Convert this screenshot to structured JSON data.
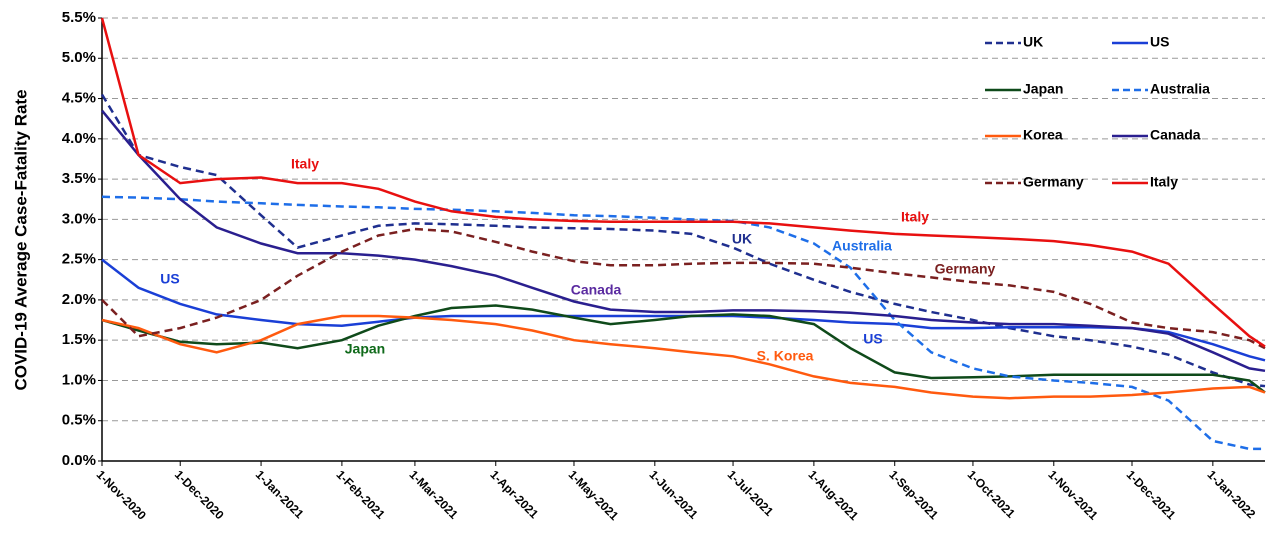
{
  "chart_data": {
    "type": "line",
    "y_label": "COVID-19  Average Case-Fatality Rate",
    "x": [
      "2020-11-01",
      "2020-11-15",
      "2020-12-01",
      "2020-12-15",
      "2021-01-01",
      "2021-01-15",
      "2021-02-01",
      "2021-02-15",
      "2021-03-01",
      "2021-03-15",
      "2021-04-01",
      "2021-04-15",
      "2021-05-01",
      "2021-05-15",
      "2021-06-01",
      "2021-06-15",
      "2021-07-01",
      "2021-07-15",
      "2021-08-01",
      "2021-08-15",
      "2021-09-01",
      "2021-09-15",
      "2021-10-01",
      "2021-10-15",
      "2021-11-01",
      "2021-11-15",
      "2021-12-01",
      "2021-12-15",
      "2022-01-01",
      "2022-01-15",
      "2022-01-21"
    ],
    "xlim": [
      "2020-11-01",
      "2022-01-21"
    ],
    "xticks": [
      {
        "value": "2020-11-01",
        "label": "1-Nov-2020"
      },
      {
        "value": "2020-12-01",
        "label": "1-Dec-2020"
      },
      {
        "value": "2021-01-01",
        "label": "1-Jan-2021"
      },
      {
        "value": "2021-02-01",
        "label": "1-Feb-2021"
      },
      {
        "value": "2021-03-01",
        "label": "1-Mar-2021"
      },
      {
        "value": "2021-04-01",
        "label": "1-Apr-2021"
      },
      {
        "value": "2021-05-01",
        "label": "1-May-2021"
      },
      {
        "value": "2021-06-01",
        "label": "1-Jun-2021"
      },
      {
        "value": "2021-07-01",
        "label": "1-Jul-2021"
      },
      {
        "value": "2021-08-01",
        "label": "1-Aug-2021"
      },
      {
        "value": "2021-09-01",
        "label": "1-Sep-2021"
      },
      {
        "value": "2021-10-01",
        "label": "1-Oct-2021"
      },
      {
        "value": "2021-11-01",
        "label": "1-Nov-2021"
      },
      {
        "value": "2021-12-01",
        "label": "1-Dec-2021"
      },
      {
        "value": "2022-01-01",
        "label": "1-Jan-2022"
      }
    ],
    "ylim": [
      0,
      5.5
    ],
    "yticks": [
      {
        "value": 0,
        "label": "0.0%"
      },
      {
        "value": 0.5,
        "label": "0.5%"
      },
      {
        "value": 1,
        "label": "1.0%"
      },
      {
        "value": 1.5,
        "label": "1.5%"
      },
      {
        "value": 2,
        "label": "2.0%"
      },
      {
        "value": 2.5,
        "label": "2.5%"
      },
      {
        "value": 3,
        "label": "3.0%"
      },
      {
        "value": 3.5,
        "label": "3.5%"
      },
      {
        "value": 4,
        "label": "4.0%"
      },
      {
        "value": 4.5,
        "label": "4.5%"
      },
      {
        "value": 5,
        "label": "5.0%"
      },
      {
        "value": 5.5,
        "label": "5.5%"
      }
    ],
    "grid": true,
    "legend": "top-right",
    "series": [
      {
        "name": "UK",
        "color": "#1f2f8f",
        "dashed": true,
        "values": [
          4.55,
          3.8,
          3.65,
          3.55,
          3.05,
          2.65,
          2.8,
          2.92,
          2.95,
          2.94,
          2.92,
          2.9,
          2.89,
          2.88,
          2.86,
          2.82,
          2.65,
          2.45,
          2.25,
          2.1,
          1.95,
          1.85,
          1.75,
          1.65,
          1.55,
          1.5,
          1.42,
          1.32,
          1.1,
          0.95,
          0.93
        ]
      },
      {
        "name": "US",
        "color": "#1a3fd6",
        "dashed": false,
        "values": [
          2.5,
          2.15,
          1.95,
          1.82,
          1.75,
          1.7,
          1.68,
          1.73,
          1.78,
          1.8,
          1.8,
          1.8,
          1.8,
          1.8,
          1.8,
          1.8,
          1.8,
          1.78,
          1.75,
          1.72,
          1.7,
          1.65,
          1.65,
          1.66,
          1.66,
          1.66,
          1.65,
          1.6,
          1.45,
          1.3,
          1.25
        ]
      },
      {
        "name": "Japan",
        "color": "#0f4a1a",
        "dashed": false,
        "values": [
          1.75,
          1.62,
          1.48,
          1.45,
          1.47,
          1.4,
          1.5,
          1.68,
          1.8,
          1.9,
          1.93,
          1.88,
          1.78,
          1.7,
          1.75,
          1.8,
          1.82,
          1.8,
          1.7,
          1.4,
          1.1,
          1.03,
          1.04,
          1.05,
          1.07,
          1.07,
          1.07,
          1.07,
          1.07,
          1.0,
          0.85
        ]
      },
      {
        "name": "Australia",
        "color": "#1e6ee8",
        "dashed": true,
        "values": [
          3.28,
          3.27,
          3.25,
          3.22,
          3.2,
          3.18,
          3.16,
          3.15,
          3.13,
          3.12,
          3.1,
          3.08,
          3.05,
          3.04,
          3.02,
          3.0,
          2.98,
          2.9,
          2.7,
          2.4,
          1.75,
          1.35,
          1.15,
          1.05,
          1.0,
          0.97,
          0.92,
          0.75,
          0.25,
          0.15,
          0.15
        ]
      },
      {
        "name": "Korea",
        "color": "#ff5a0f",
        "dashed": false,
        "values": [
          1.75,
          1.65,
          1.45,
          1.35,
          1.5,
          1.7,
          1.8,
          1.8,
          1.78,
          1.75,
          1.7,
          1.62,
          1.5,
          1.45,
          1.4,
          1.35,
          1.3,
          1.2,
          1.05,
          0.97,
          0.92,
          0.85,
          0.8,
          0.78,
          0.8,
          0.8,
          0.82,
          0.85,
          0.9,
          0.92,
          0.85
        ]
      },
      {
        "name": "Canada",
        "color": "#2a1f8f",
        "dashed": false,
        "values": [
          4.35,
          3.8,
          3.25,
          2.9,
          2.7,
          2.58,
          2.58,
          2.55,
          2.5,
          2.42,
          2.3,
          2.15,
          1.98,
          1.88,
          1.85,
          1.85,
          1.87,
          1.87,
          1.86,
          1.84,
          1.8,
          1.75,
          1.72,
          1.7,
          1.7,
          1.68,
          1.65,
          1.58,
          1.35,
          1.15,
          1.12
        ]
      },
      {
        "name": "Germany",
        "color": "#7a2020",
        "dashed": true,
        "values": [
          2.0,
          1.55,
          1.65,
          1.78,
          2.0,
          2.3,
          2.6,
          2.8,
          2.88,
          2.85,
          2.72,
          2.6,
          2.48,
          2.43,
          2.43,
          2.45,
          2.46,
          2.46,
          2.45,
          2.4,
          2.33,
          2.28,
          2.22,
          2.18,
          2.1,
          1.95,
          1.72,
          1.65,
          1.6,
          1.5,
          1.4
        ]
      },
      {
        "name": "Italy",
        "color": "#e81010",
        "dashed": false,
        "values": [
          5.5,
          3.8,
          3.45,
          3.5,
          3.52,
          3.45,
          3.45,
          3.38,
          3.22,
          3.1,
          3.03,
          3.0,
          2.98,
          2.97,
          2.97,
          2.97,
          2.97,
          2.95,
          2.9,
          2.86,
          2.82,
          2.8,
          2.78,
          2.76,
          2.73,
          2.68,
          2.6,
          2.45,
          1.95,
          1.55,
          1.42
        ]
      }
    ],
    "annotations": [
      {
        "text": "Italy",
        "color": "#e81010"
      },
      {
        "text": "Italy",
        "color": "#e81010"
      },
      {
        "text": "UK",
        "color": "#1f2f8f"
      },
      {
        "text": "Australia",
        "color": "#1e6ee8"
      },
      {
        "text": "Germany",
        "color": "#7a2020"
      },
      {
        "text": "US",
        "color": "#1a3fd6"
      },
      {
        "text": "Canada",
        "color": "#5a2aa0"
      },
      {
        "text": "Japan",
        "color": "#0f6a1a"
      },
      {
        "text": "S. Korea",
        "color": "#ff5a0f"
      },
      {
        "text": "US",
        "color": "#1a3fd6"
      }
    ]
  }
}
